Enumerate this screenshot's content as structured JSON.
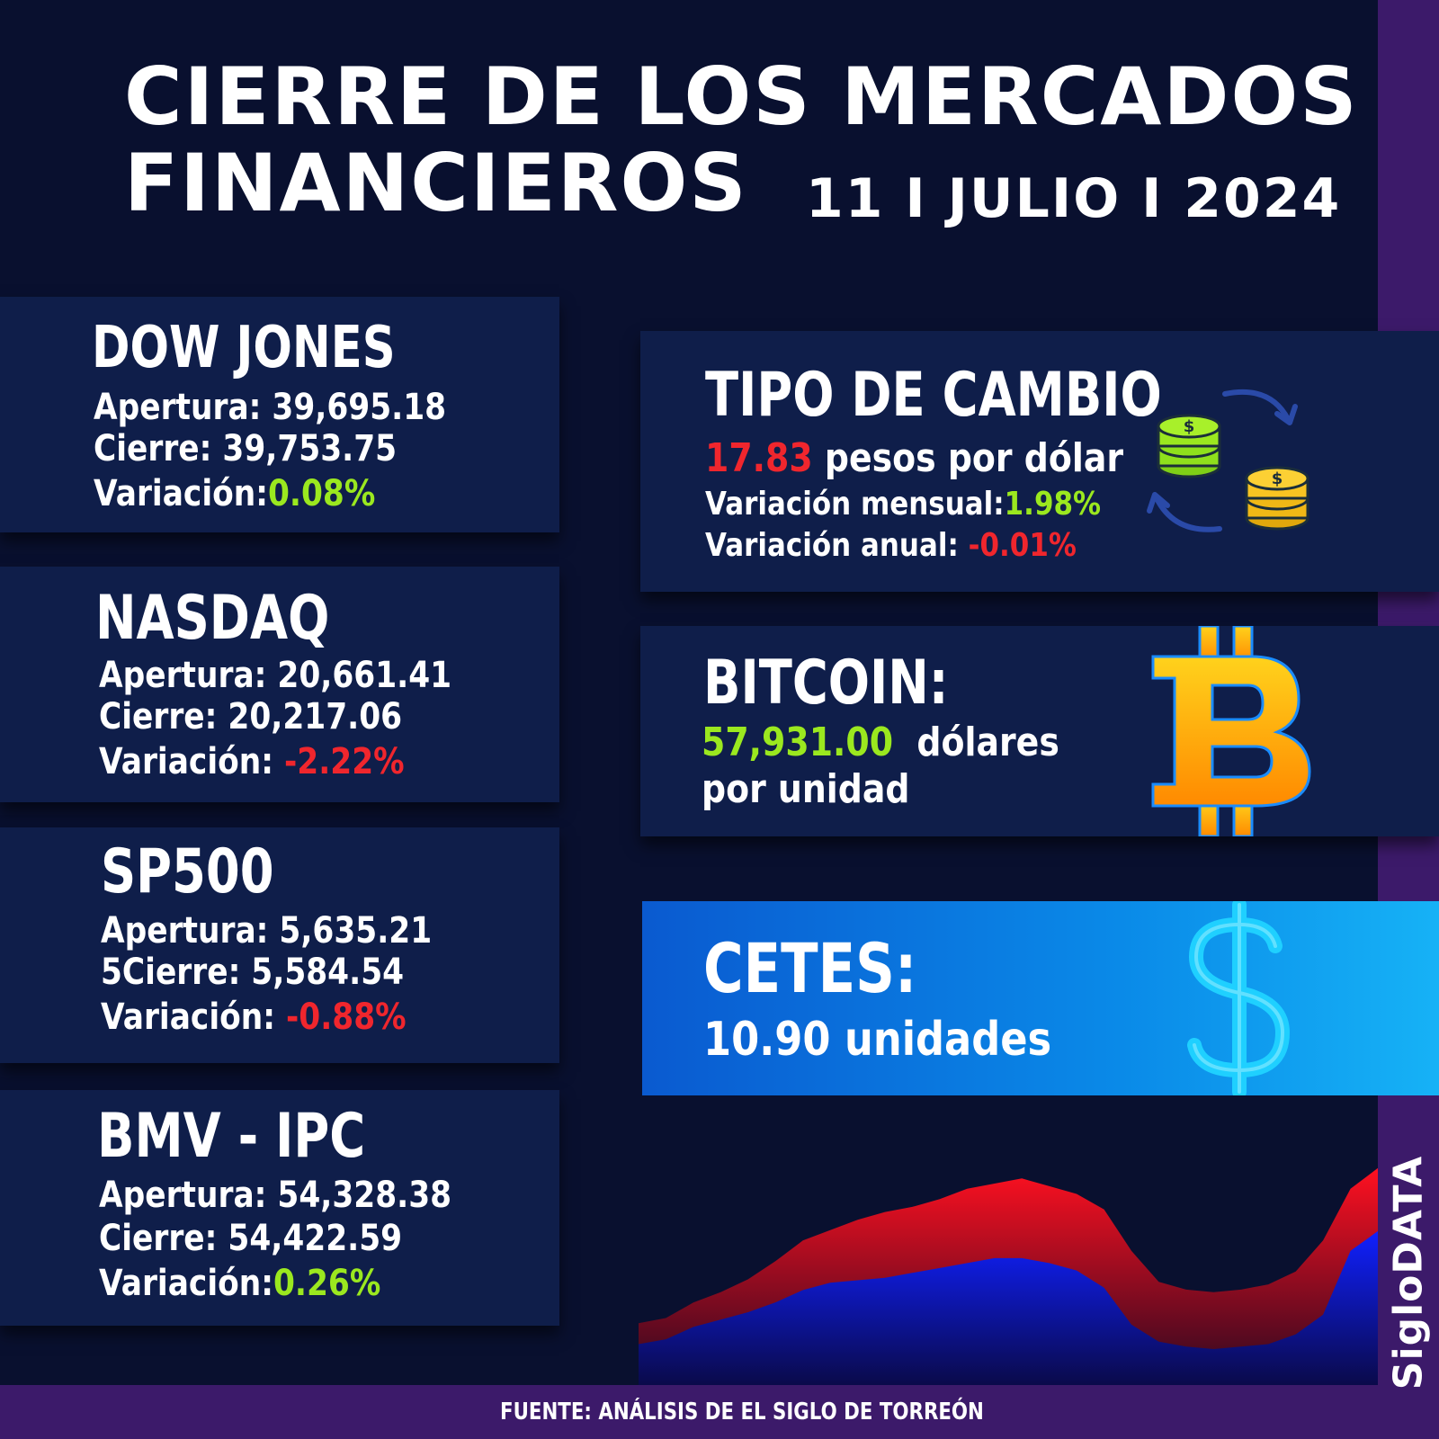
{
  "header": {
    "title_line1": "CIERRE DE LOS MERCADOS",
    "title_line2": "FINANCIEROS",
    "date": "11 I JULIO I 2024"
  },
  "indices": [
    {
      "name": "DOW JONES",
      "apertura_label": "Apertura:",
      "apertura": "39,695.18",
      "cierre_label": "Cierre:",
      "cierre": "39,753.75",
      "variacion_label": "Variación:",
      "variacion": "0.08%",
      "trend": "up"
    },
    {
      "name": "NASDAQ",
      "apertura_label": "Apertura:",
      "apertura": "20,661.41",
      "cierre_label": "Cierre:",
      "cierre": "20,217.06",
      "variacion_label": "Variación:",
      "variacion": "-2.22%",
      "trend": "down"
    },
    {
      "name": "SP500",
      "apertura_label": "Apertura:",
      "apertura": "5,635.21",
      "cierre_label": "5Cierre:",
      "cierre": "5,584.54",
      "variacion_label": "Variación:",
      "variacion": "-0.88%",
      "trend": "down"
    },
    {
      "name": "BMV - IPC",
      "apertura_label": "Apertura:",
      "apertura": "54,328.38",
      "cierre_label": "Cierre:",
      "cierre": "54,422.59",
      "variacion_label": "Variación:",
      "variacion": "0.26%",
      "trend": "up"
    }
  ],
  "tipo_de_cambio": {
    "title": "TIPO DE CAMBIO",
    "value": "17.83",
    "unit": "pesos por dólar",
    "mensual_label": "Variación mensual:",
    "mensual": "1.98%",
    "anual_label": "Variación anual:",
    "anual": "-0.01%",
    "icon": "coin-exchange-icon"
  },
  "bitcoin": {
    "title": "BITCOIN:",
    "value": "57,931.00",
    "unit": "dólares",
    "unit_line2": "por unidad",
    "icon": "bitcoin-icon"
  },
  "cetes": {
    "title": "CETES:",
    "value": "10.90 unidades",
    "icon": "dollar-sign-icon"
  },
  "footer": "FUENTE: ANÁLISIS DE EL SIGLO DE TORREÓN",
  "brand": "SigloDATA",
  "colors": {
    "background": "#09102f",
    "card": "#0f1e4a",
    "accent_purple": "#3c1a6a",
    "positive": "#9be81f",
    "negative": "#f0262d",
    "cetes_blue": "#0a8ae8"
  },
  "decorative_chart": {
    "series": [
      {
        "values": [
          10,
          12,
          18,
          22,
          27,
          34,
          42,
          46,
          50,
          53,
          55,
          58,
          62,
          64,
          66,
          63,
          60,
          54,
          38,
          26,
          23,
          22,
          23,
          25,
          30,
          42,
          62,
          70
        ]
      },
      {
        "values": [
          2,
          4,
          9,
          12,
          15,
          19,
          24,
          27,
          28,
          29,
          31,
          33,
          35,
          37,
          37,
          35,
          32,
          25,
          10,
          3,
          1,
          0,
          1,
          2,
          6,
          14,
          40,
          48
        ]
      }
    ]
  }
}
